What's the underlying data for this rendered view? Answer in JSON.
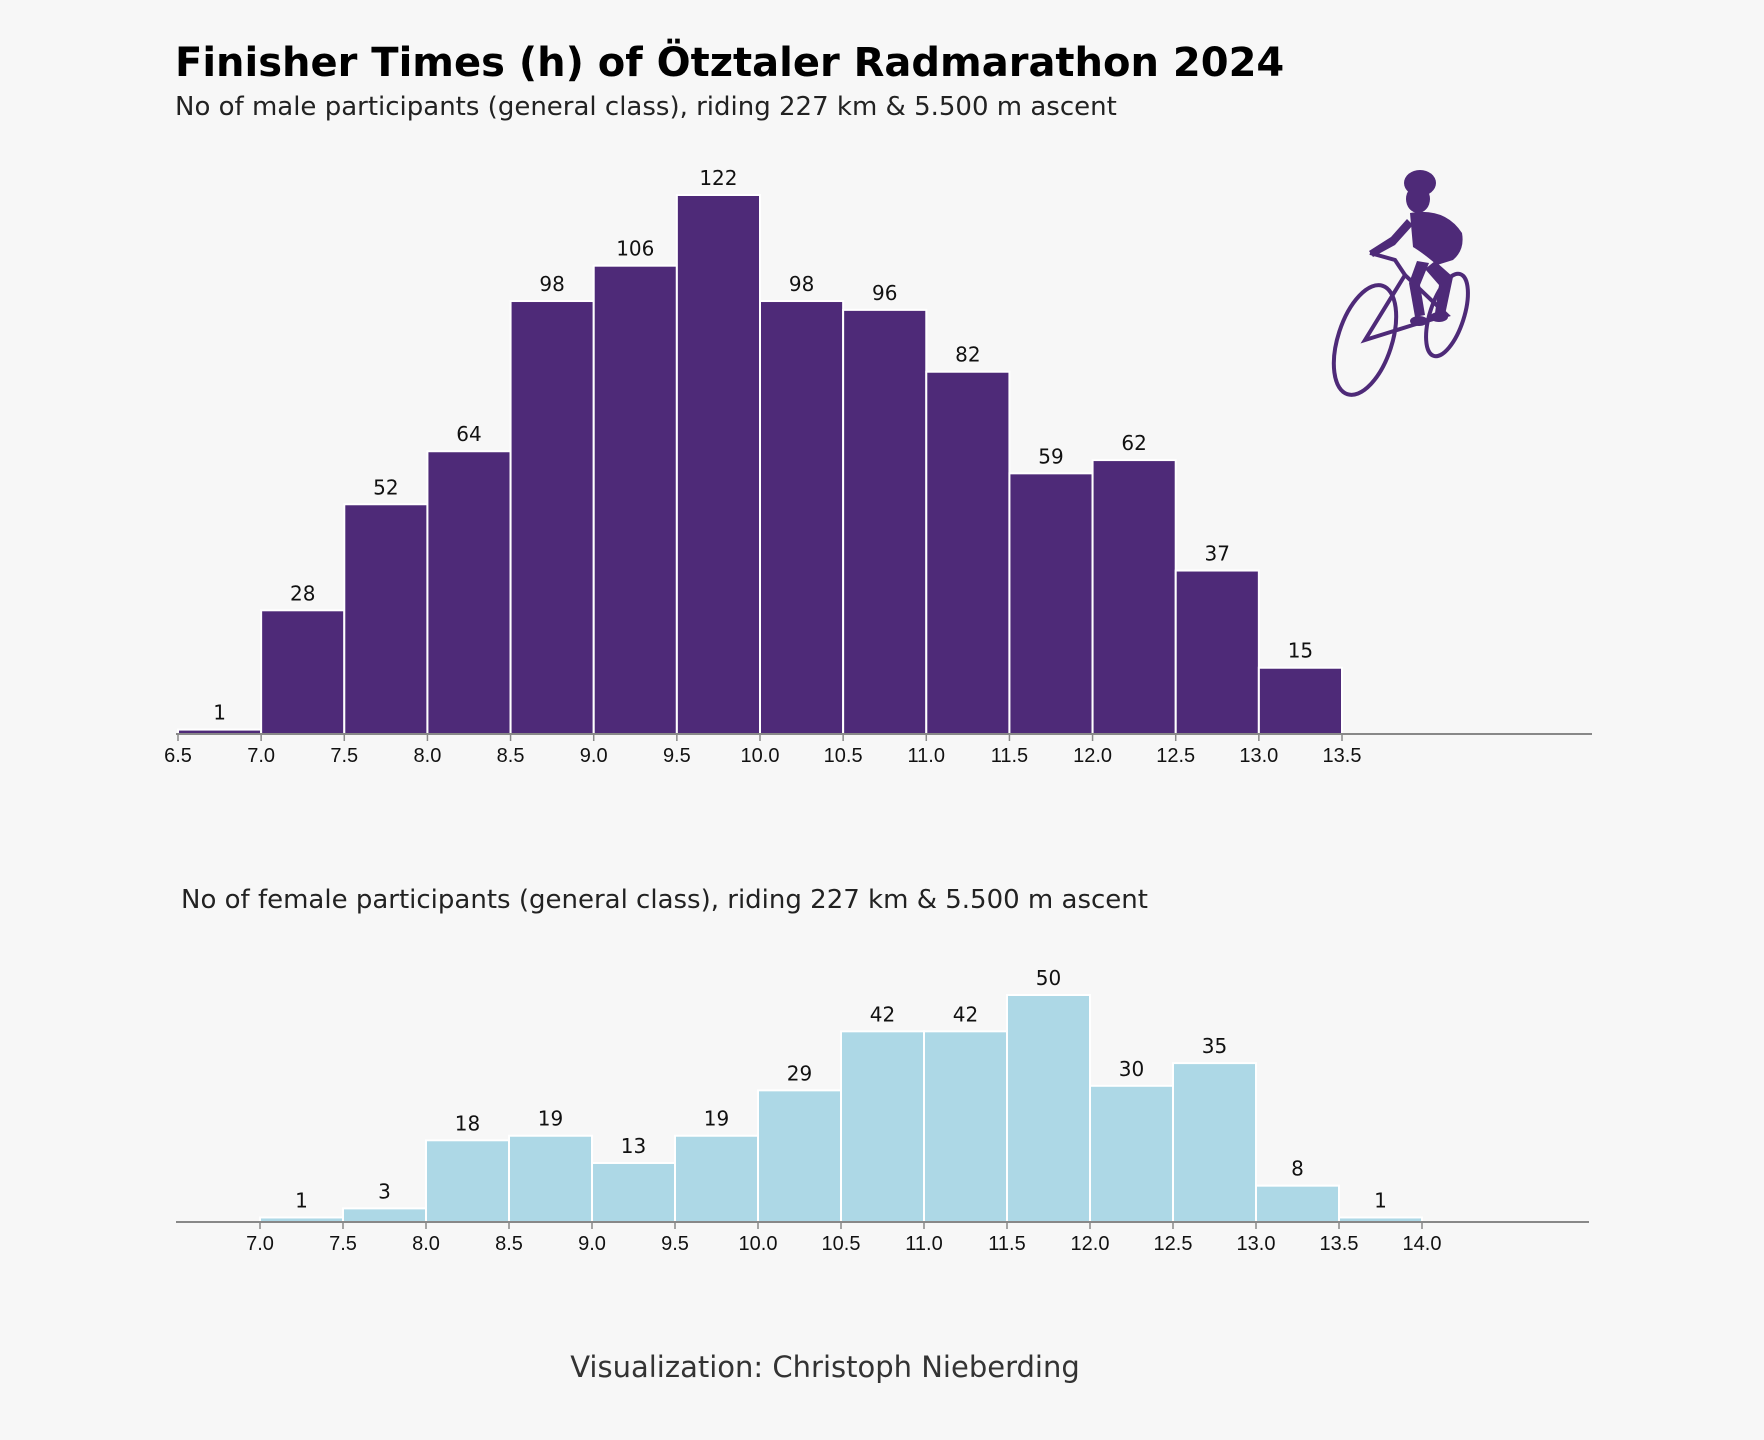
{
  "title": "Finisher Times (h) of Ötztaler Radmarathon 2024",
  "credit": "Visualization: Christoph Nieberding",
  "colors": {
    "male": "#4e2a78",
    "female": "#add8e6",
    "background": "#f7f7f7",
    "axis": "#888888"
  },
  "icon": "cyclist-icon",
  "chart_data": [
    {
      "type": "bar",
      "subtitle": "No of male participants (general class), riding 227 km & 5.500 m ascent",
      "bin_edges": [
        6.5,
        7.0,
        7.5,
        8.0,
        8.5,
        9.0,
        9.5,
        10.0,
        10.5,
        11.0,
        11.5,
        12.0,
        12.5,
        13.0,
        13.5
      ],
      "tick_labels": [
        "6.5",
        "7.0",
        "7.5",
        "8.0",
        "8.5",
        "9.0",
        "9.5",
        "10.0",
        "10.5",
        "11.0",
        "11.5",
        "12.0",
        "12.5",
        "13.0",
        "13.5"
      ],
      "values": [
        1,
        28,
        52,
        64,
        98,
        106,
        122,
        98,
        96,
        82,
        59,
        62,
        37,
        15
      ],
      "xlim": [
        6.5,
        15.0
      ],
      "ylim": [
        0,
        122
      ],
      "grid": false
    },
    {
      "type": "bar",
      "subtitle": "No of female participants (general class), riding 227 km & 5.500 m ascent",
      "bin_edges": [
        7.0,
        7.5,
        8.0,
        8.5,
        9.0,
        9.5,
        10.0,
        10.5,
        11.0,
        11.5,
        12.0,
        12.5,
        13.0,
        13.5,
        14.0
      ],
      "tick_labels": [
        "7.0",
        "7.5",
        "8.0",
        "8.5",
        "9.0",
        "9.5",
        "10.0",
        "10.5",
        "11.0",
        "11.5",
        "12.0",
        "12.5",
        "13.0",
        "13.5",
        "14.0"
      ],
      "values": [
        1,
        3,
        18,
        19,
        13,
        19,
        29,
        42,
        42,
        50,
        30,
        35,
        8,
        1
      ],
      "xlim": [
        6.5,
        15.0
      ],
      "ylim": [
        0,
        50
      ],
      "grid": false
    }
  ]
}
